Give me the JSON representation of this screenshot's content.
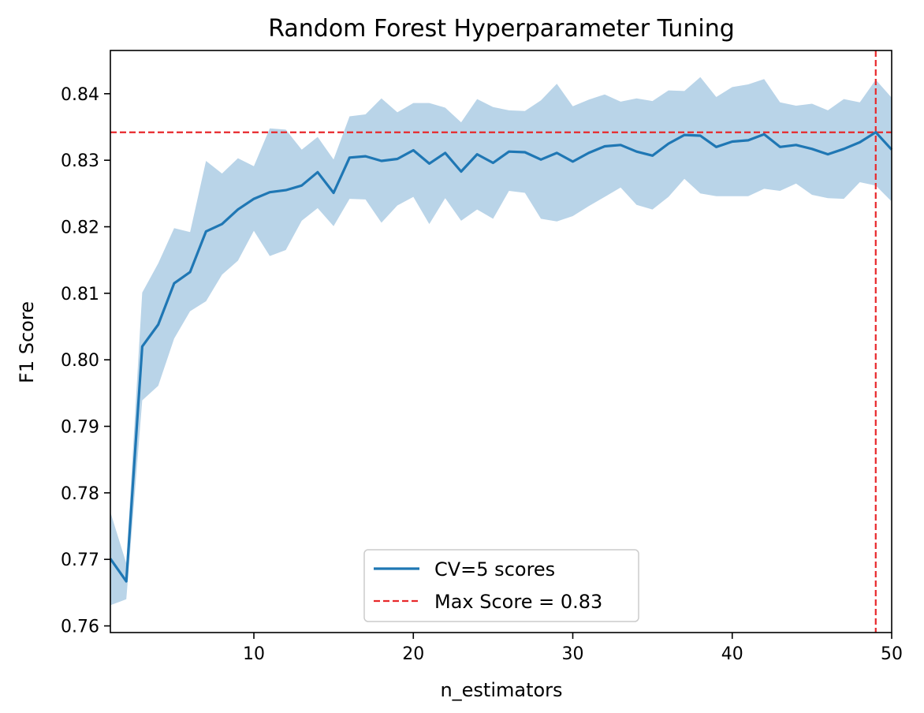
{
  "chart_data": {
    "type": "line",
    "title": "Random Forest Hyperparameter Tuning",
    "xlabel": "n_estimators",
    "ylabel": "F1 Score",
    "xlim": [
      1,
      50
    ],
    "ylim": [
      0.759,
      0.8465
    ],
    "xticks": [
      10,
      20,
      30,
      40,
      50
    ],
    "yticks": [
      0.76,
      0.77,
      0.78,
      0.79,
      0.8,
      0.81,
      0.82,
      0.83,
      0.84
    ],
    "ytick_labels": [
      "0.76",
      "0.77",
      "0.78",
      "0.79",
      "0.80",
      "0.81",
      "0.82",
      "0.83",
      "0.84"
    ],
    "legend_position": "lower center",
    "grid": false,
    "series": [
      {
        "name": "CV=5 scores",
        "color": "#1f77b4",
        "band_color": "#b9d4e8",
        "x": [
          1,
          2,
          3,
          4,
          5,
          6,
          7,
          8,
          9,
          10,
          11,
          12,
          13,
          14,
          15,
          16,
          17,
          18,
          19,
          20,
          21,
          22,
          23,
          24,
          25,
          26,
          27,
          28,
          29,
          30,
          31,
          32,
          33,
          34,
          35,
          36,
          37,
          38,
          39,
          40,
          41,
          42,
          43,
          44,
          45,
          46,
          47,
          48,
          49,
          50
        ],
        "y": [
          0.7701,
          0.7667,
          0.802,
          0.8053,
          0.8115,
          0.8132,
          0.8193,
          0.8204,
          0.8226,
          0.8242,
          0.8252,
          0.8255,
          0.8262,
          0.8282,
          0.8251,
          0.8304,
          0.8306,
          0.8299,
          0.8302,
          0.8315,
          0.8295,
          0.8311,
          0.8283,
          0.8309,
          0.8296,
          0.8313,
          0.8312,
          0.8301,
          0.8311,
          0.8298,
          0.8311,
          0.8321,
          0.8323,
          0.8313,
          0.8307,
          0.8325,
          0.8338,
          0.8337,
          0.832,
          0.8328,
          0.833,
          0.8339,
          0.832,
          0.8323,
          0.8317,
          0.8309,
          0.8317,
          0.8327,
          0.8342,
          0.8316
        ],
        "lower": [
          0.7631,
          0.764,
          0.7939,
          0.7961,
          0.8032,
          0.8073,
          0.8088,
          0.8128,
          0.8149,
          0.8194,
          0.8156,
          0.8165,
          0.8209,
          0.8228,
          0.8201,
          0.8242,
          0.8241,
          0.8206,
          0.8232,
          0.8245,
          0.8204,
          0.8243,
          0.8209,
          0.8226,
          0.8212,
          0.8254,
          0.8251,
          0.8212,
          0.8208,
          0.8216,
          0.8231,
          0.8245,
          0.8259,
          0.8233,
          0.8226,
          0.8245,
          0.8272,
          0.825,
          0.8246,
          0.8246,
          0.8246,
          0.8257,
          0.8254,
          0.8265,
          0.8248,
          0.8243,
          0.8242,
          0.8267,
          0.8262,
          0.8238
        ],
        "upper": [
          0.7771,
          0.7694,
          0.8101,
          0.8145,
          0.8198,
          0.8192,
          0.8299,
          0.828,
          0.8303,
          0.8291,
          0.8348,
          0.8346,
          0.8316,
          0.8335,
          0.8301,
          0.8366,
          0.8369,
          0.8393,
          0.8372,
          0.8386,
          0.8386,
          0.8379,
          0.8357,
          0.8392,
          0.838,
          0.8375,
          0.8374,
          0.839,
          0.8415,
          0.8381,
          0.8391,
          0.8399,
          0.8388,
          0.8393,
          0.8389,
          0.8405,
          0.8404,
          0.8425,
          0.8395,
          0.841,
          0.8414,
          0.8422,
          0.8387,
          0.8382,
          0.8385,
          0.8375,
          0.8392,
          0.8387,
          0.8421,
          0.8394
        ]
      },
      {
        "name": "Max Score = 0.83",
        "color": "#e8282b",
        "style": "dashed",
        "hline_y": 0.8342,
        "vline_x": 49
      }
    ]
  }
}
